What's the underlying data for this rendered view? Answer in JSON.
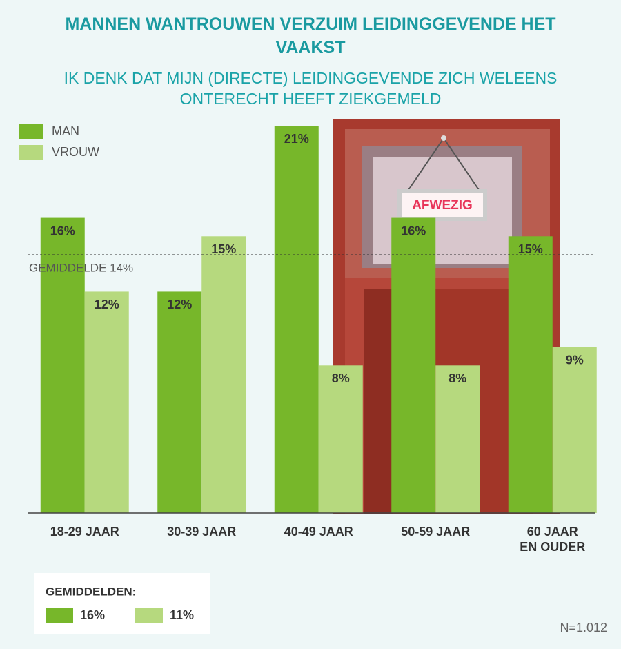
{
  "chart_data": {
    "type": "bar",
    "title": "MANNEN WANTROUWEN VERZUIM LEIDINGGEVENDE HET VAAKST",
    "subtitle": "IK DENK DAT MIJN (DIRECTE) LEIDINGGEVENDE ZICH WELEENS ONTERECHT HEEFT ZIEKGEMELD",
    "categories": [
      "18-29 JAAR",
      "30-39 JAAR",
      "40-49 JAAR",
      "50-59 JAAR",
      "60 JAAR\nEN OUDER"
    ],
    "series": [
      {
        "name": "MAN",
        "color": "#77b72a",
        "values": [
          16,
          12,
          21,
          16,
          15
        ],
        "value_labels": [
          "16%",
          "12%",
          "21%",
          "16%",
          "15%"
        ]
      },
      {
        "name": "VROUW",
        "color": "#b6d97e",
        "values": [
          12,
          15,
          8,
          8,
          9
        ],
        "value_labels": [
          "12%",
          "15%",
          "8%",
          "8%",
          "9%"
        ]
      }
    ],
    "ylim": [
      0,
      21
    ],
    "average_line": {
      "value": 14,
      "label": "GEMIDDELDE 14%"
    },
    "sign": "AFWEZIG",
    "averages": {
      "title": "GEMIDDELDEN:",
      "values": [
        16,
        11
      ],
      "value_labels": [
        "16%",
        "11%"
      ]
    },
    "note": "N=1.012"
  }
}
